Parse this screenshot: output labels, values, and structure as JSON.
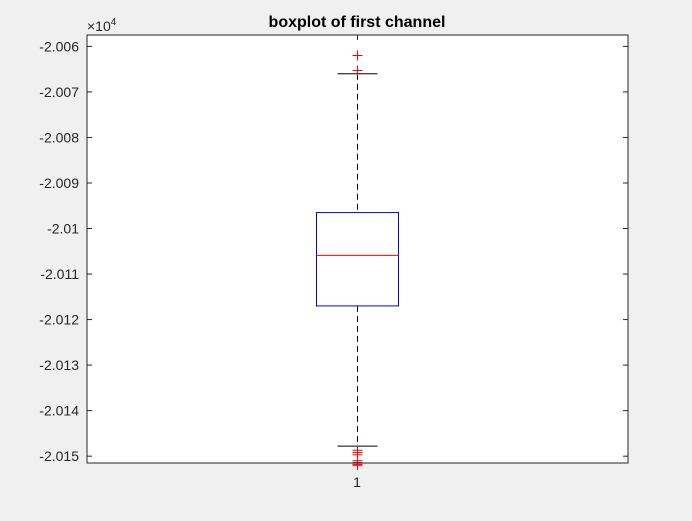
{
  "chart_data": {
    "type": "boxplot",
    "title": "boxplot of first channel",
    "xlabel": "",
    "ylabel": "",
    "y_exponent_label": "×10",
    "y_exponent_power": "4",
    "x_tick_labels": [
      "1"
    ],
    "ylim": [
      -2.01515,
      -2.00575
    ],
    "y_ticks": [
      -2.006,
      -2.007,
      -2.008,
      -2.009,
      -2.01,
      -2.011,
      -2.012,
      -2.013,
      -2.014,
      -2.015
    ],
    "y_tick_labels": [
      "-2.006",
      "-2.007",
      "-2.008",
      "-2.009",
      "-2.01",
      "-2.011",
      "-2.012",
      "-2.013",
      "-2.014",
      "-2.015"
    ],
    "grid": false,
    "boxes": [
      {
        "category": "1",
        "q1": -2.0117,
        "median": -2.01059,
        "q3": -2.00965,
        "whisker_low": -2.01478,
        "whisker_high": -2.0066,
        "outliers": [
          -2.0062,
          -2.00653,
          -2.01487,
          -2.01492,
          -2.01497,
          -2.0151,
          -2.01514,
          -2.01518,
          -2.0152
        ]
      }
    ],
    "colors": {
      "box": "#0000ff",
      "median": "#ff0000",
      "whisker": "#000000",
      "outlier": "#ff0000",
      "axes_background": "#ffffff",
      "figure_background": "#f0f0f0"
    }
  }
}
